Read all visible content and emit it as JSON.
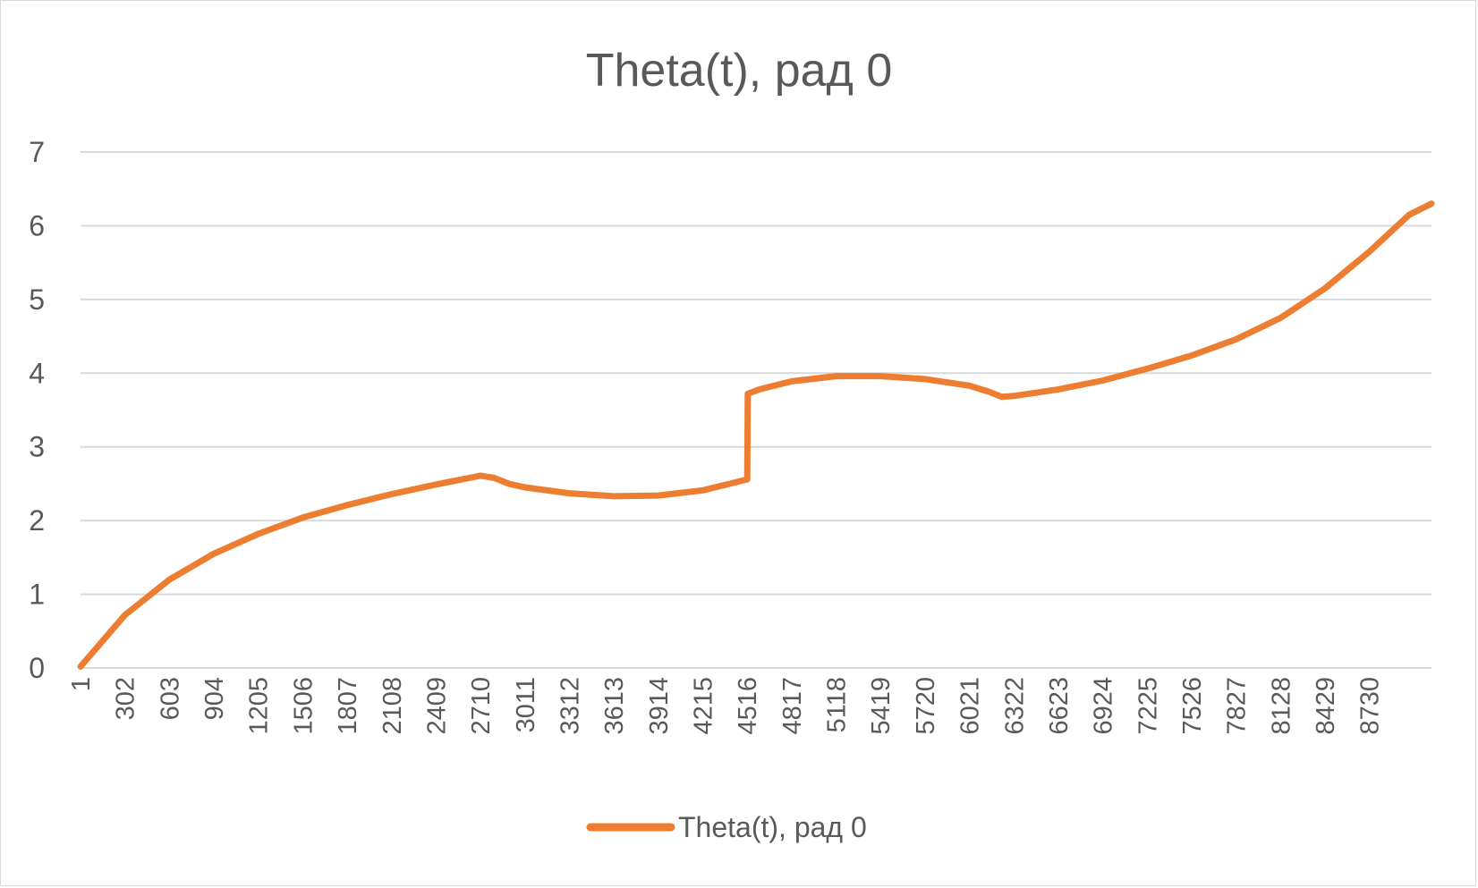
{
  "chart_data": {
    "type": "line",
    "title": "Theta(t), рад 0",
    "xlabel": "",
    "ylabel": "",
    "ylim": [
      0,
      7
    ],
    "yticks": [
      "0",
      "1",
      "2",
      "3",
      "4",
      "5",
      "6",
      "7"
    ],
    "xlim": [
      1,
      9150
    ],
    "xtick_labels": [
      "1",
      "302",
      "603",
      "904",
      "1205",
      "1506",
      "1807",
      "2108",
      "2409",
      "2710",
      "3011",
      "3312",
      "3613",
      "3914",
      "4215",
      "4516",
      "4817",
      "5118",
      "5419",
      "5720",
      "6021",
      "6322",
      "6623",
      "6924",
      "7225",
      "7526",
      "7827",
      "8128",
      "8429",
      "8730"
    ],
    "grid": true,
    "legend_position": "bottom",
    "series": [
      {
        "name": "Theta(t), рад 0",
        "color": "#ED7D31",
        "points": [
          [
            1,
            0.02
          ],
          [
            302,
            0.72
          ],
          [
            603,
            1.2
          ],
          [
            904,
            1.55
          ],
          [
            1205,
            1.82
          ],
          [
            1506,
            2.04
          ],
          [
            1807,
            2.21
          ],
          [
            2108,
            2.36
          ],
          [
            2409,
            2.49
          ],
          [
            2710,
            2.61
          ],
          [
            2800,
            2.58
          ],
          [
            2900,
            2.5
          ],
          [
            3011,
            2.45
          ],
          [
            3312,
            2.37
          ],
          [
            3613,
            2.33
          ],
          [
            3914,
            2.34
          ],
          [
            4215,
            2.41
          ],
          [
            4400,
            2.5
          ],
          [
            4516,
            2.56
          ],
          [
            4520,
            3.72
          ],
          [
            4600,
            3.78
          ],
          [
            4817,
            3.89
          ],
          [
            5118,
            3.96
          ],
          [
            5419,
            3.96
          ],
          [
            5720,
            3.92
          ],
          [
            6021,
            3.83
          ],
          [
            6150,
            3.75
          ],
          [
            6240,
            3.68
          ],
          [
            6322,
            3.69
          ],
          [
            6623,
            3.78
          ],
          [
            6924,
            3.9
          ],
          [
            7225,
            4.06
          ],
          [
            7526,
            4.24
          ],
          [
            7827,
            4.46
          ],
          [
            8128,
            4.75
          ],
          [
            8429,
            5.15
          ],
          [
            8730,
            5.65
          ],
          [
            9000,
            6.15
          ],
          [
            9150,
            6.3
          ]
        ]
      }
    ]
  }
}
